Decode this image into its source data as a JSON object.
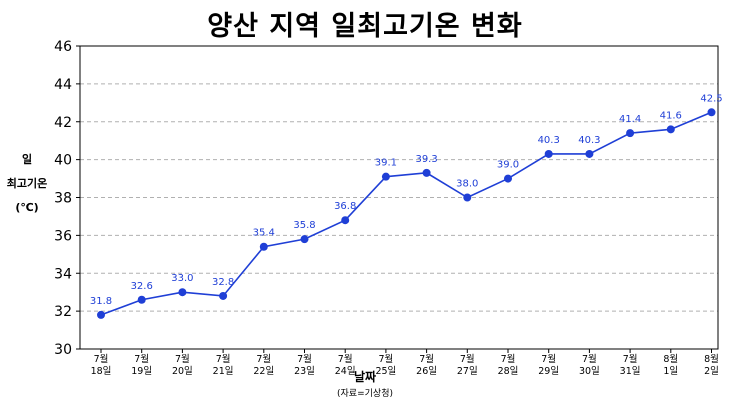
{
  "chart_data": {
    "type": "line",
    "title": "양산 지역 일최고기온 변화",
    "ylabel_lines": [
      "일",
      "최고기온",
      "(℃)"
    ],
    "xlabel": "날짜",
    "source": "(자료=기상청)",
    "categories": [
      [
        "7월",
        "18일"
      ],
      [
        "7월",
        "19일"
      ],
      [
        "7월",
        "20일"
      ],
      [
        "7월",
        "21일"
      ],
      [
        "7월",
        "22일"
      ],
      [
        "7월",
        "23일"
      ],
      [
        "7월",
        "24일"
      ],
      [
        "7월",
        "25일"
      ],
      [
        "7월",
        "26일"
      ],
      [
        "7월",
        "27일"
      ],
      [
        "7월",
        "28일"
      ],
      [
        "7월",
        "29일"
      ],
      [
        "7월",
        "30일"
      ],
      [
        "7월",
        "31일"
      ],
      [
        "8월",
        "1일"
      ],
      [
        "8월",
        "2일"
      ]
    ],
    "values": [
      31.8,
      32.6,
      33.0,
      32.8,
      35.4,
      35.8,
      36.8,
      39.1,
      39.3,
      38.0,
      39.0,
      40.3,
      40.3,
      41.4,
      41.6,
      42.5
    ],
    "data_labels": [
      "31.8",
      "32.6",
      "33.0",
      "32.8",
      "35.4",
      "35.8",
      "36.8",
      "39.1",
      "39.3",
      "38.0",
      "39.0",
      "40.3",
      "40.3",
      "41.4",
      "41.6",
      "42.5"
    ],
    "yticks": [
      30,
      32,
      34,
      36,
      38,
      40,
      42,
      44,
      46
    ],
    "ylim": [
      30,
      46
    ],
    "grid": "horizontal dashed",
    "colors": {
      "line": "#1f3fd6",
      "label": "#1f3fd6",
      "grid": "#b0b0b0",
      "axis": "#000000"
    }
  }
}
